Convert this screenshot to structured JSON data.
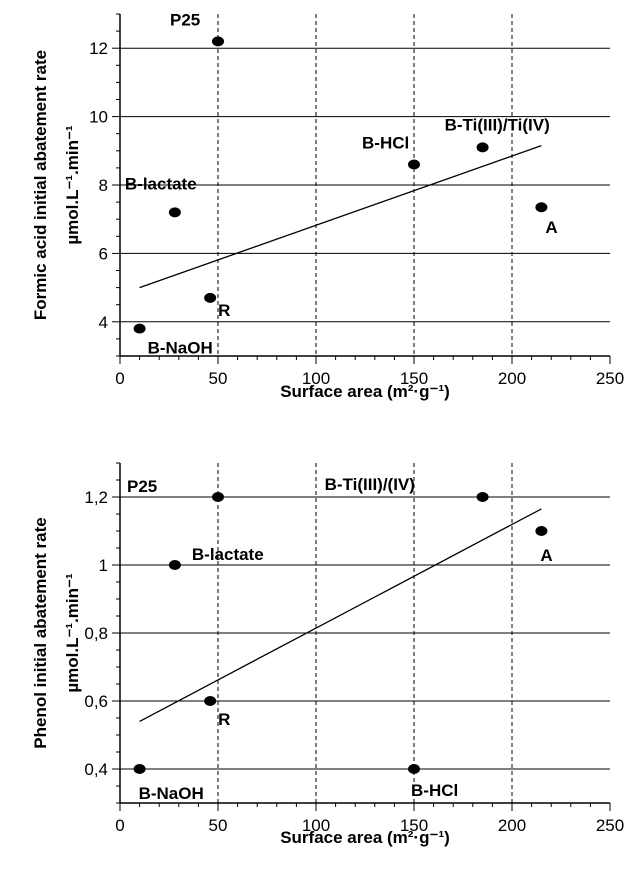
{
  "chart_data": [
    {
      "type": "scatter",
      "xlabel": "Surface area (m²·g⁻¹)",
      "ylabel_line1": "Formic acid initial abatement rate",
      "ylabel_line2": "µmol.L⁻¹.min⁻¹",
      "xlim": [
        0,
        250
      ],
      "ylim": [
        3,
        13
      ],
      "xticks": [
        0,
        50,
        100,
        150,
        200,
        250
      ],
      "xtick_labels": [
        "0",
        "50",
        "100",
        "150",
        "200",
        "250"
      ],
      "yticks": [
        4,
        6,
        8,
        10,
        12
      ],
      "ytick_labels": [
        "4",
        "6",
        "8",
        "10",
        "12"
      ],
      "vertical_grid_x": [
        50,
        100,
        150,
        200
      ],
      "horizontal_grid_y": [
        4,
        6,
        8,
        10,
        12
      ],
      "points": [
        {
          "label": "P25",
          "x": 50,
          "y": 12.2
        },
        {
          "label": "B-HCl",
          "x": 150,
          "y": 8.6
        },
        {
          "label": "B-Ti(III)/Ti(IV)",
          "x": 185,
          "y": 9.1
        },
        {
          "label": "B-lactate",
          "x": 28,
          "y": 7.2
        },
        {
          "label": "A",
          "x": 215,
          "y": 7.35
        },
        {
          "label": "R",
          "x": 46,
          "y": 4.7
        },
        {
          "label": "B-NaOH",
          "x": 10,
          "y": 3.8
        }
      ],
      "trendline": {
        "x": [
          10,
          215
        ],
        "y": [
          5.0,
          9.15
        ]
      }
    },
    {
      "type": "scatter",
      "xlabel": "Surface area (m²·g⁻¹)",
      "ylabel_line1": "Phenol initial abatement rate",
      "ylabel_line2": "µmol.L⁻¹.min⁻¹",
      "xlim": [
        0,
        250
      ],
      "ylim": [
        0.3,
        1.3
      ],
      "xticks": [
        0,
        50,
        100,
        150,
        200,
        250
      ],
      "xtick_labels": [
        "0",
        "50",
        "100",
        "150",
        "200",
        "250"
      ],
      "yticks": [
        0.4,
        0.6,
        0.8,
        1.0,
        1.2
      ],
      "ytick_labels": [
        "0,4",
        "0,6",
        "0,8",
        "1",
        "1,2"
      ],
      "vertical_grid_x": [
        50,
        100,
        150,
        200
      ],
      "horizontal_grid_y": [
        0.4,
        0.6,
        0.8,
        1.0,
        1.2
      ],
      "points": [
        {
          "label": "P25",
          "x": 50,
          "y": 1.2
        },
        {
          "label": "B-Ti(III)/(IV)",
          "x": 185,
          "y": 1.2
        },
        {
          "label": "B-lactate",
          "x": 28,
          "y": 1.0
        },
        {
          "label": "A",
          "x": 215,
          "y": 1.1
        },
        {
          "label": "R",
          "x": 46,
          "y": 0.6
        },
        {
          "label": "B-NaOH",
          "x": 10,
          "y": 0.4
        },
        {
          "label": "B-HCl",
          "x": 150,
          "y": 0.4
        }
      ],
      "trendline": {
        "x": [
          10,
          215
        ],
        "y": [
          0.54,
          1.165
        ]
      }
    }
  ]
}
